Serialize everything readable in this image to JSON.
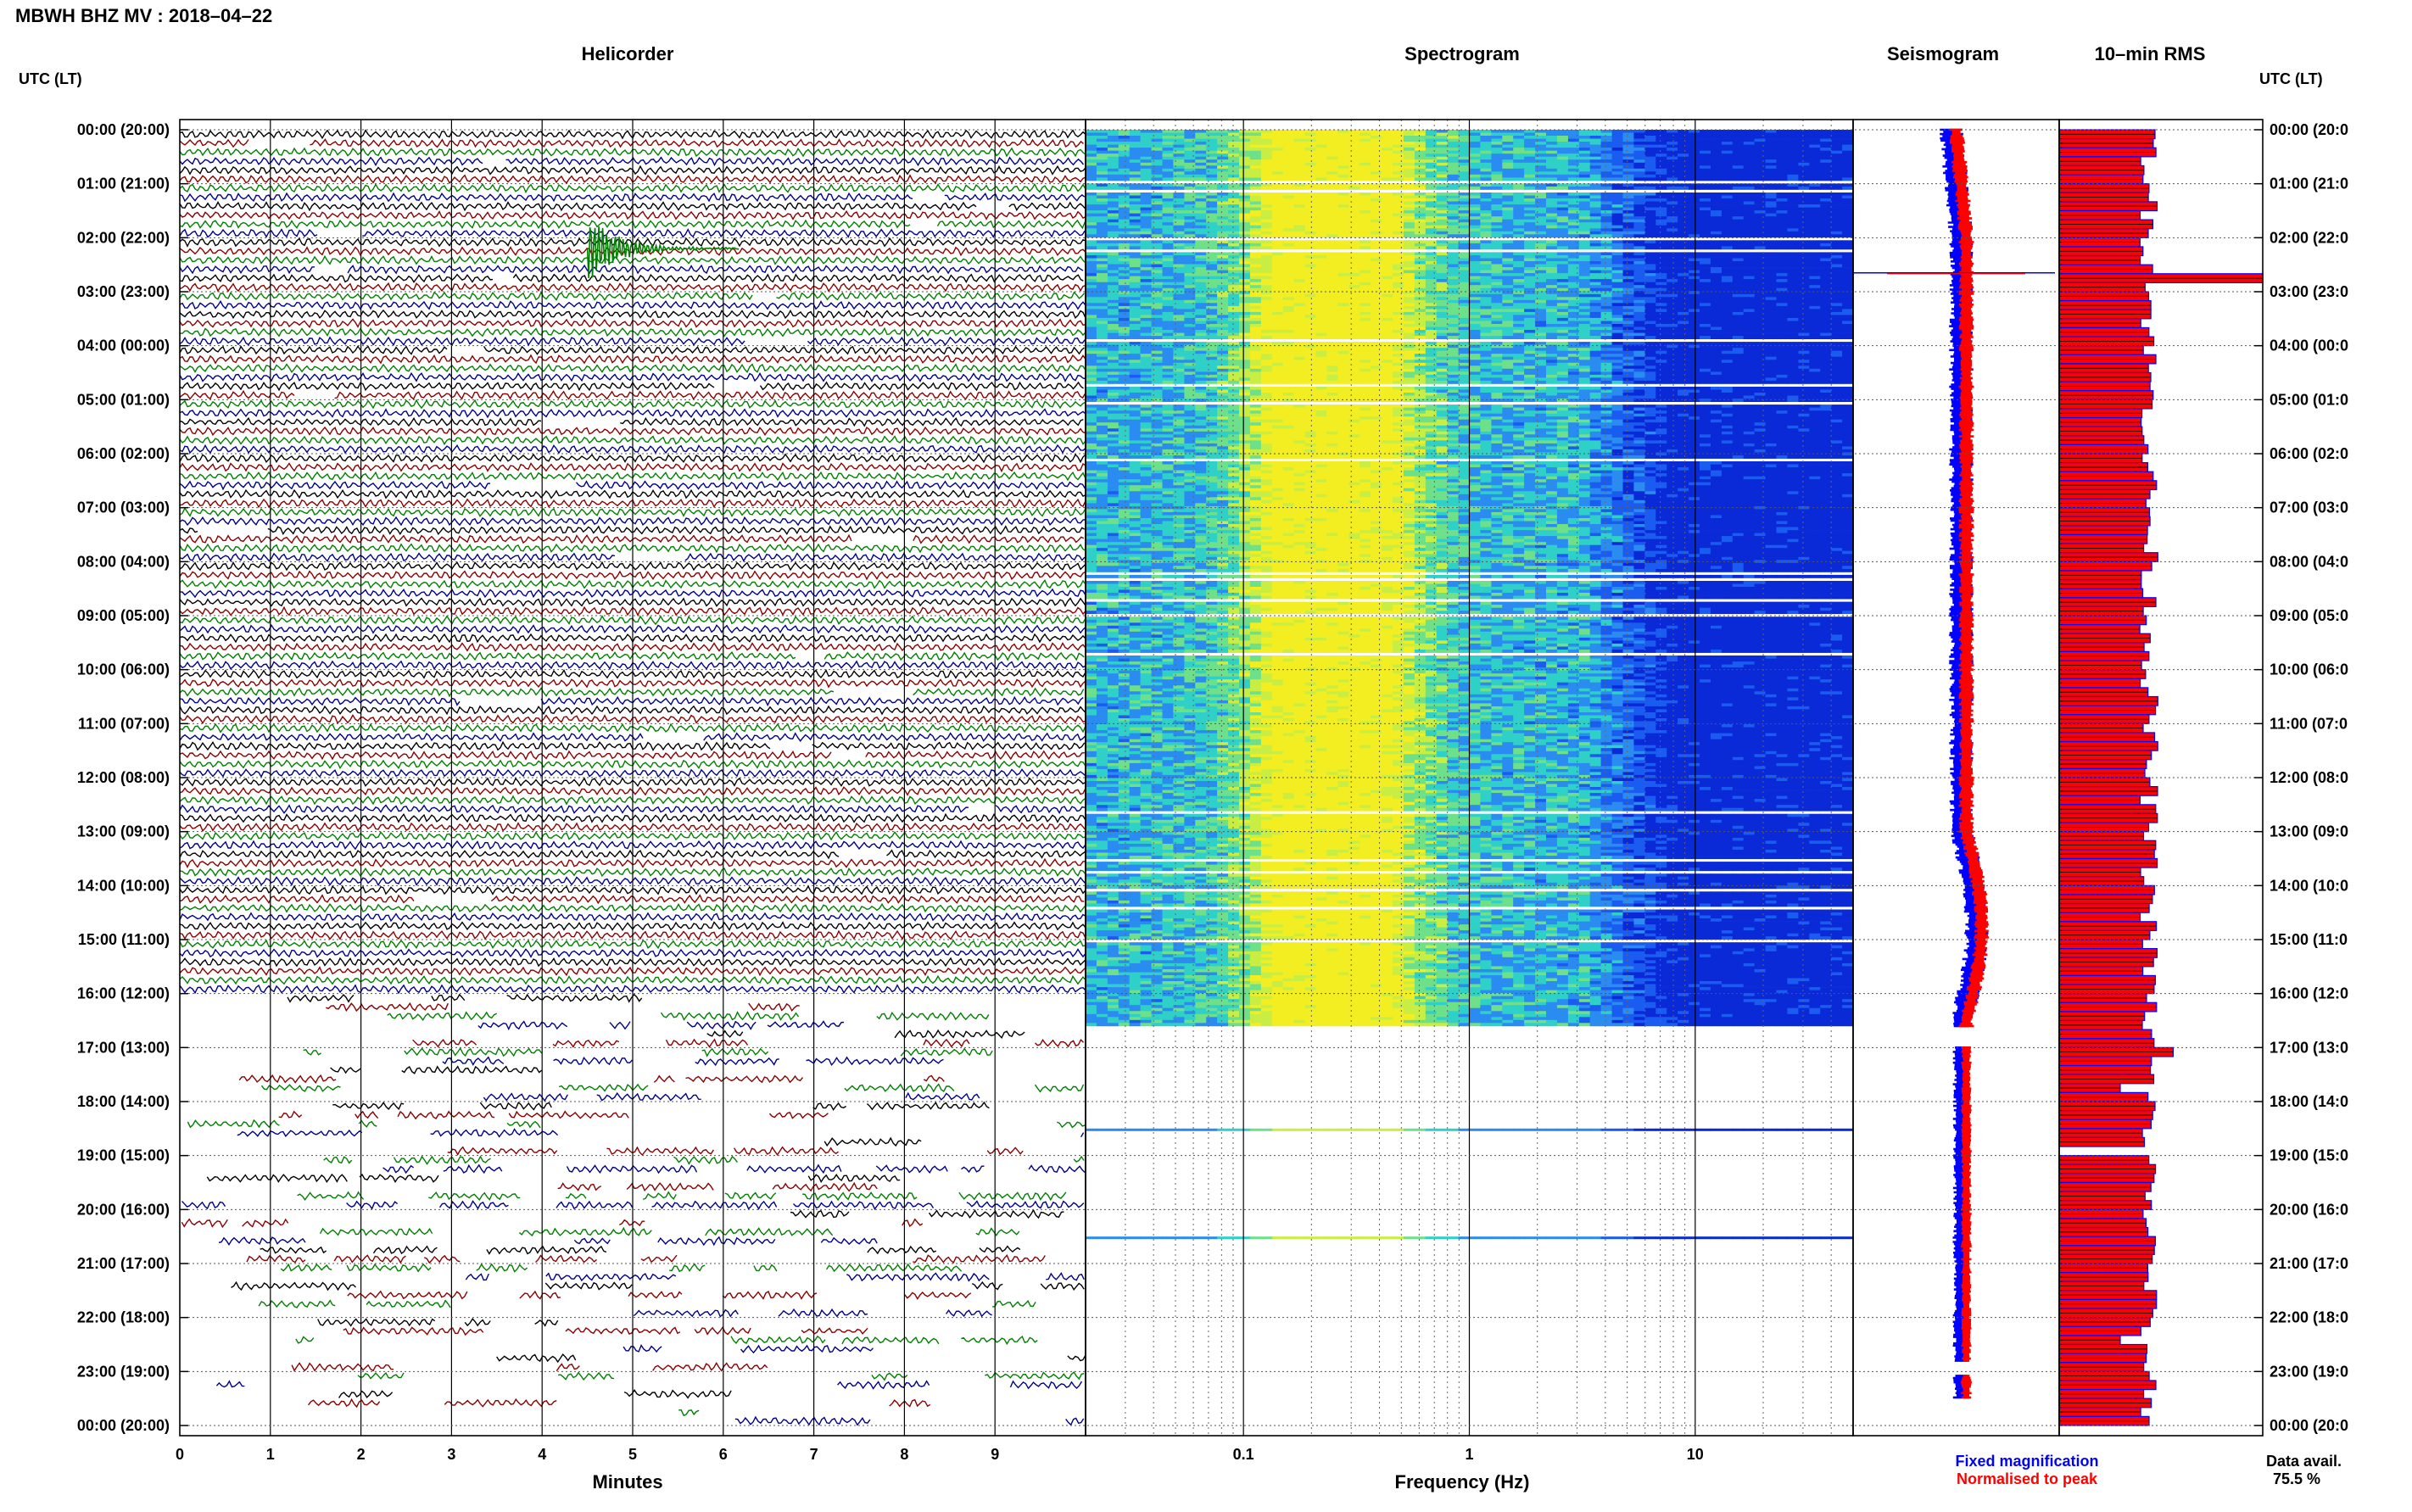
{
  "header": {
    "station": "MBWH BHZ MV",
    "date": "2018–04–22",
    "title": "MBWH BHZ MV : 2018–04–22"
  },
  "panels": {
    "helicorder": "Helicorder",
    "spectrogram": "Spectrogram",
    "seismogram": "Seismogram",
    "rms": "10–min RMS"
  },
  "axis_labels": {
    "left_col": "UTC (LT)",
    "right_col": "UTC (LT)",
    "helicorder_x": "Minutes",
    "spectrogram_x": "Frequency (Hz)"
  },
  "time_labels_left": [
    "00:00 (20:00)",
    "01:00 (21:00)",
    "02:00 (22:00)",
    "03:00 (23:00)",
    "04:00 (00:00)",
    "05:00 (01:00)",
    "06:00 (02:00)",
    "07:00 (03:00)",
    "08:00 (04:00)",
    "09:00 (05:00)",
    "10:00 (06:00)",
    "11:00 (07:00)",
    "12:00 (08:00)",
    "13:00 (09:00)",
    "14:00 (10:00)",
    "15:00 (11:00)",
    "16:00 (12:00)",
    "17:00 (13:00)",
    "18:00 (14:00)",
    "19:00 (15:00)",
    "20:00 (16:00)",
    "21:00 (17:00)",
    "22:00 (18:00)",
    "23:00 (19:00)",
    "00:00 (20:00)"
  ],
  "time_labels_right": [
    "00:00 (20:0",
    "01:00 (21:0",
    "02:00 (22:0",
    "03:00 (23:0",
    "04:00 (00:0",
    "05:00 (01:0",
    "06:00 (02:0",
    "07:00 (03:0",
    "08:00 (04:0",
    "09:00 (05:0",
    "10:00 (06:0",
    "11:00 (07:0",
    "12:00 (08:0",
    "13:00 (09:0",
    "14:00 (10:0",
    "15:00 (11:0",
    "16:00 (12:0",
    "17:00 (13:0",
    "18:00 (14:0",
    "19:00 (15:0",
    "20:00 (16:0",
    "21:00 (17:0",
    "22:00 (18:0",
    "23:00 (19:0",
    "00:00 (20:0"
  ],
  "legend": {
    "fixed": "Fixed magnification",
    "normalised": "Normalised to peak",
    "fixed_color": "#0000ff",
    "normalised_color": "#ff0000"
  },
  "data_avail": {
    "label": "Data avail.",
    "value": "75.5 %"
  },
  "colors": {
    "trace_cycle": [
      "#000000",
      "#8b0000",
      "#008000",
      "#00008b"
    ],
    "spectrogram_low": "#0a2ad8",
    "spectrogram_mid": "#2fd0c8",
    "spectrogram_high": "#f2ee22",
    "rms_fill": "#ff0000",
    "rms_edge": "#0000ff"
  },
  "chart_data": [
    {
      "type": "line",
      "title": "Helicorder",
      "xlabel": "Minutes",
      "ylabel": "UTC (LT)",
      "x_ticks": [
        "0",
        "1",
        "2",
        "3",
        "4",
        "5",
        "6",
        "7",
        "8",
        "9"
      ],
      "xlim": [
        0,
        10
      ],
      "ylim_hours": [
        0,
        24
      ],
      "line_minutes": 10,
      "lines_per_hour": 6,
      "line_colors_cycle": [
        "black",
        "dark red",
        "green",
        "dark blue"
      ],
      "continuous_until_hour": 16,
      "event": {
        "hour_offset": 2.2,
        "minute": 4.5,
        "description_color": "green"
      },
      "data_avail_percent": 75.5
    },
    {
      "type": "heatmap",
      "title": "Spectrogram",
      "xlabel": "Frequency (Hz)",
      "x_scale": "log",
      "xlim": [
        0.02,
        50
      ],
      "x_ticks": [
        "0.1",
        "1",
        "10"
      ],
      "ylim_hours": [
        0,
        24
      ],
      "colormap": "blue-cyan-yellow",
      "energy_peak_hz": [
        0.15,
        0.4
      ],
      "data_until_hour": 16.6,
      "isolated_rows_hours": [
        18.5,
        20.5
      ]
    },
    {
      "type": "line",
      "title": "Seismogram",
      "series": [
        {
          "name": "Fixed magnification",
          "color": "blue"
        },
        {
          "name": "Normalised to peak",
          "color": "red"
        }
      ],
      "ylim_hours": [
        0,
        24
      ],
      "spike_hour": 2.65
    },
    {
      "type": "bar",
      "title": "10–min RMS",
      "ylim_hours": [
        0,
        24
      ],
      "bins": 144,
      "typical_relative": 0.45,
      "peak_relative": 1.0,
      "peak_hour": 2.65,
      "secondary_peak_hour": 16.95,
      "gap_hour": 18.8
    }
  ]
}
